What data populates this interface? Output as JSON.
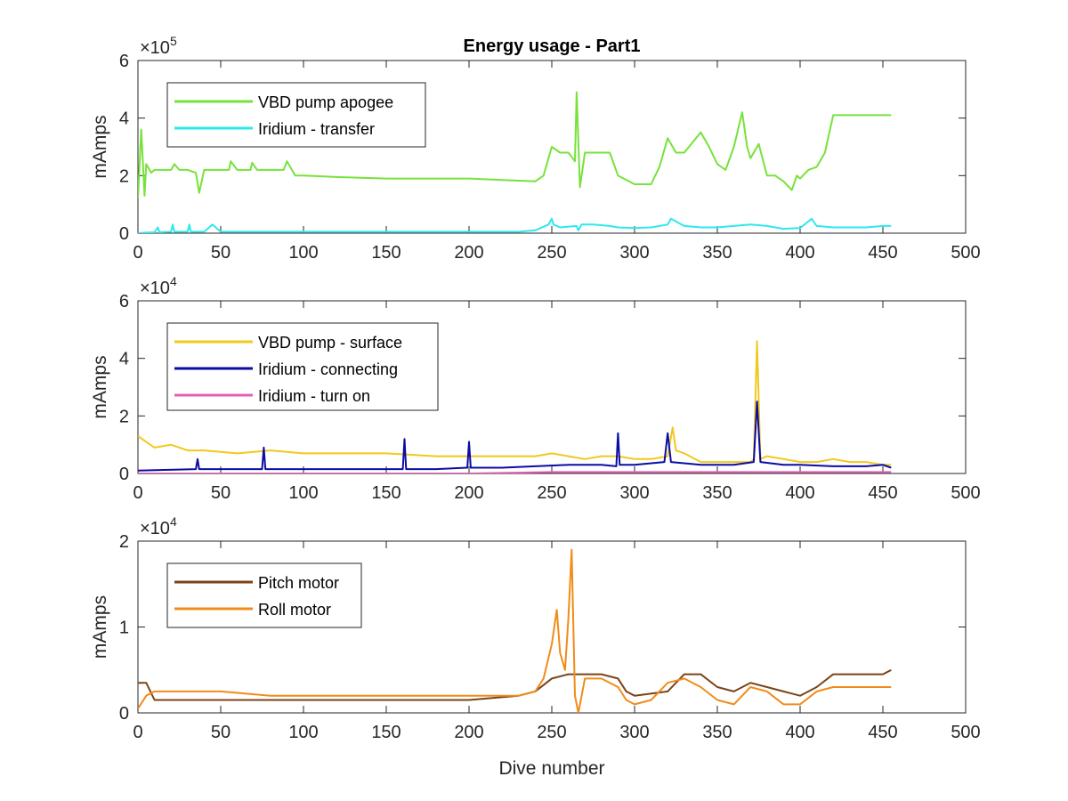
{
  "figure": {
    "title": "Energy usage - Part1",
    "xlabel": "Dive number"
  },
  "chart_data": [
    {
      "type": "line",
      "title": "Energy usage - Part1",
      "xlabel": "",
      "ylabel": "mAmps",
      "xlim": [
        0,
        500
      ],
      "ylim": [
        0,
        600000
      ],
      "xticks": [
        0,
        50,
        100,
        150,
        200,
        250,
        300,
        350,
        400,
        450,
        500
      ],
      "yticks": [
        0,
        200000,
        400000,
        600000
      ],
      "ytick_labels": [
        "0",
        "2",
        "4",
        "6"
      ],
      "y_exponent_base": "×10",
      "y_exponent_power": "5",
      "legend": "top-left",
      "grid": false,
      "series": [
        {
          "name": "VBD pump apogee",
          "color": "#77e23b",
          "x": [
            0,
            2,
            4,
            5,
            8,
            10,
            20,
            22,
            25,
            30,
            35,
            37,
            40,
            55,
            56,
            60,
            68,
            69,
            72,
            88,
            90,
            95,
            100,
            120,
            150,
            180,
            200,
            220,
            240,
            245,
            250,
            255,
            260,
            264,
            265,
            267,
            270,
            280,
            285,
            290,
            300,
            310,
            315,
            320,
            325,
            330,
            340,
            345,
            350,
            355,
            360,
            365,
            368,
            370,
            375,
            380,
            385,
            390,
            395,
            398,
            400,
            405,
            410,
            415,
            420,
            430,
            440,
            450,
            455
          ],
          "y": [
            120000,
            360000,
            130000,
            240000,
            210000,
            220000,
            220000,
            240000,
            220000,
            220000,
            210000,
            140000,
            220000,
            220000,
            250000,
            220000,
            220000,
            245000,
            220000,
            220000,
            250000,
            200000,
            200000,
            195000,
            190000,
            190000,
            190000,
            185000,
            180000,
            200000,
            300000,
            280000,
            280000,
            250000,
            490000,
            160000,
            280000,
            280000,
            280000,
            200000,
            170000,
            170000,
            230000,
            330000,
            280000,
            280000,
            350000,
            300000,
            240000,
            220000,
            300000,
            420000,
            300000,
            260000,
            310000,
            200000,
            200000,
            180000,
            150000,
            200000,
            190000,
            220000,
            230000,
            280000,
            410000,
            410000,
            410000,
            410000,
            410000
          ]
        },
        {
          "name": "Iridium - transfer",
          "color": "#2ee8ee",
          "x": [
            0,
            5,
            10,
            12,
            13,
            20,
            21,
            22,
            30,
            31,
            32,
            40,
            45,
            50,
            60,
            70,
            80,
            90,
            100,
            110,
            120,
            130,
            140,
            150,
            160,
            170,
            180,
            190,
            200,
            210,
            220,
            230,
            240,
            248,
            250,
            251,
            255,
            265,
            266,
            268,
            275,
            285,
            290,
            300,
            310,
            320,
            322,
            330,
            340,
            350,
            360,
            370,
            380,
            390,
            400,
            407,
            410,
            420,
            430,
            440,
            450,
            455
          ],
          "y": [
            0,
            2000,
            3000,
            20000,
            3000,
            5000,
            30000,
            5000,
            5000,
            30000,
            5000,
            5000,
            30000,
            5000,
            5000,
            5000,
            5000,
            5000,
            5000,
            5000,
            5000,
            5000,
            5000,
            5000,
            5000,
            5000,
            5000,
            5000,
            5000,
            5000,
            5000,
            5000,
            10000,
            30000,
            50000,
            30000,
            20000,
            25000,
            10000,
            30000,
            30000,
            25000,
            20000,
            18000,
            20000,
            30000,
            50000,
            25000,
            20000,
            20000,
            25000,
            30000,
            25000,
            15000,
            18000,
            50000,
            25000,
            20000,
            20000,
            20000,
            25000,
            25000
          ]
        }
      ]
    },
    {
      "type": "line",
      "title": "",
      "xlabel": "",
      "ylabel": "mAmps",
      "xlim": [
        0,
        500
      ],
      "ylim": [
        0,
        60000
      ],
      "xticks": [
        0,
        50,
        100,
        150,
        200,
        250,
        300,
        350,
        400,
        450,
        500
      ],
      "yticks": [
        0,
        20000,
        40000,
        60000
      ],
      "ytick_labels": [
        "0",
        "2",
        "4",
        "6"
      ],
      "y_exponent_base": "×10",
      "y_exponent_power": "4",
      "legend": "top-left",
      "grid": false,
      "series": [
        {
          "name": "VBD pump - surface",
          "color": "#f2c81d",
          "x": [
            0,
            5,
            10,
            20,
            30,
            40,
            60,
            80,
            100,
            120,
            150,
            180,
            200,
            220,
            230,
            240,
            250,
            260,
            270,
            280,
            290,
            300,
            310,
            320,
            323,
            325,
            330,
            340,
            350,
            360,
            370,
            372,
            374,
            376,
            380,
            390,
            400,
            410,
            420,
            430,
            440,
            450,
            455
          ],
          "y": [
            13000,
            11000,
            9000,
            10000,
            8000,
            8000,
            7000,
            8000,
            7000,
            7000,
            7000,
            6000,
            6000,
            6000,
            6000,
            6000,
            7000,
            6000,
            5000,
            6000,
            6000,
            5000,
            5000,
            6000,
            16000,
            8000,
            7000,
            4000,
            4000,
            4000,
            4000,
            5000,
            46000,
            5000,
            6000,
            5000,
            4000,
            4000,
            5000,
            4000,
            4000,
            3000,
            3000
          ]
        },
        {
          "name": "Iridium - connecting",
          "color": "#0b0ba6",
          "x": [
            0,
            35,
            36,
            37,
            50,
            70,
            75,
            76,
            77,
            100,
            120,
            140,
            160,
            161,
            162,
            180,
            199,
            200,
            201,
            220,
            240,
            260,
            280,
            289,
            290,
            291,
            300,
            318,
            320,
            322,
            340,
            360,
            372,
            374,
            376,
            390,
            400,
            420,
            440,
            450,
            455
          ],
          "y": [
            1000,
            1500,
            5000,
            1500,
            1500,
            1500,
            1500,
            9000,
            1500,
            1500,
            1500,
            1500,
            1500,
            12000,
            1500,
            1500,
            2000,
            11000,
            2000,
            2000,
            2500,
            3000,
            3000,
            2500,
            14000,
            3000,
            3000,
            4000,
            14000,
            4000,
            3000,
            3000,
            4000,
            25000,
            4000,
            3000,
            3000,
            2500,
            2500,
            3000,
            2000
          ]
        },
        {
          "name": "Iridium - turn on",
          "color": "#e45eb6",
          "x": [
            0,
            100,
            200,
            250,
            300,
            350,
            400,
            455
          ],
          "y": [
            0,
            0,
            0,
            500,
            500,
            500,
            500,
            500
          ]
        }
      ]
    },
    {
      "type": "line",
      "title": "",
      "xlabel": "Dive number",
      "ylabel": "mAmps",
      "xlim": [
        0,
        500
      ],
      "ylim": [
        0,
        20000
      ],
      "xticks": [
        0,
        50,
        100,
        150,
        200,
        250,
        300,
        350,
        400,
        450,
        500
      ],
      "yticks": [
        0,
        10000,
        20000
      ],
      "ytick_labels": [
        "0",
        "1",
        "2"
      ],
      "y_exponent_base": "×10",
      "y_exponent_power": "4",
      "legend": "top-left",
      "grid": false,
      "series": [
        {
          "name": "Pitch motor",
          "color": "#7a4418",
          "x": [
            0,
            5,
            10,
            30,
            50,
            80,
            100,
            150,
            200,
            230,
            240,
            250,
            260,
            270,
            280,
            290,
            295,
            300,
            320,
            330,
            340,
            350,
            360,
            370,
            380,
            390,
            400,
            410,
            420,
            430,
            440,
            450,
            455
          ],
          "y": [
            3500,
            3500,
            1500,
            1500,
            1500,
            1500,
            1500,
            1500,
            1500,
            2000,
            2500,
            4000,
            4500,
            4500,
            4500,
            4000,
            2500,
            2000,
            2500,
            4500,
            4500,
            3000,
            2500,
            3500,
            3000,
            2500,
            2000,
            3000,
            4500,
            4500,
            4500,
            4500,
            5000
          ]
        },
        {
          "name": "Roll motor",
          "color": "#f08c19",
          "x": [
            0,
            5,
            10,
            30,
            50,
            80,
            100,
            150,
            200,
            230,
            240,
            245,
            250,
            253,
            255,
            258,
            260,
            262,
            264,
            266,
            270,
            280,
            290,
            295,
            300,
            310,
            320,
            330,
            340,
            350,
            360,
            370,
            380,
            390,
            400,
            410,
            420,
            430,
            440,
            450,
            455
          ],
          "y": [
            500,
            2000,
            2500,
            2500,
            2500,
            2000,
            2000,
            2000,
            2000,
            2000,
            2500,
            4000,
            8000,
            12000,
            7000,
            5000,
            11000,
            19000,
            2000,
            0,
            4000,
            4000,
            3000,
            1500,
            1000,
            1500,
            3500,
            4000,
            3000,
            1500,
            1000,
            3000,
            2500,
            1000,
            1000,
            2500,
            3000,
            3000,
            3000,
            3000,
            3000
          ]
        }
      ]
    }
  ]
}
